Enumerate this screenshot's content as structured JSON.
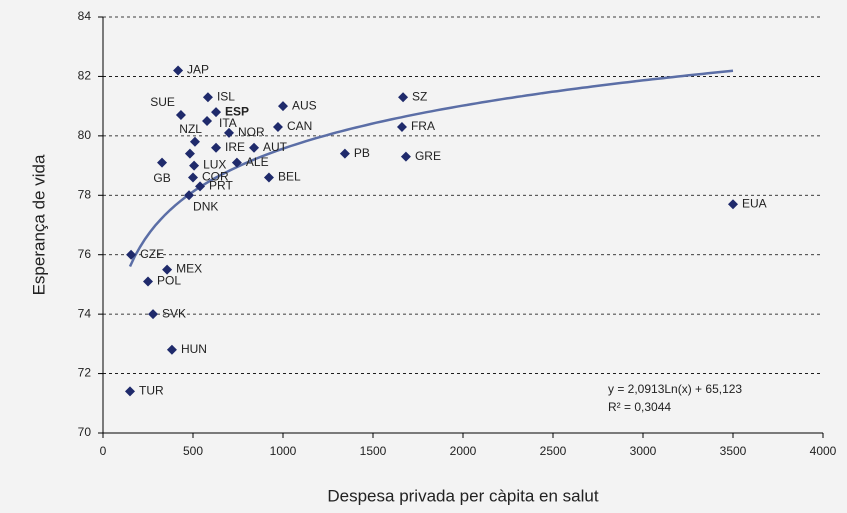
{
  "chart_data": {
    "type": "scatter",
    "xlabel": "Despesa privada per càpita en salut",
    "ylabel": "Esperança de vida",
    "labels": [
      "JAP",
      "ISL",
      "SUE",
      "ESP",
      "ITA",
      "NZL",
      "NOR",
      "AUS",
      "CAN",
      "IRE",
      "AUT",
      "GB",
      "LUX",
      null,
      "ALE",
      "COR",
      "PRT",
      "DNK",
      "BEL",
      "PB",
      "SZ",
      "FRA",
      "GRE",
      "EUA",
      "CZE",
      "MEX",
      "POL",
      "SVK",
      "HUN",
      "TUR"
    ],
    "x": [
      417,
      583,
      433,
      628,
      578,
      511,
      700,
      1000,
      972,
      628,
      839,
      328,
      506,
      483,
      744,
      500,
      539,
      478,
      922,
      1344,
      1667,
      1661,
      1683,
      3500,
      156,
      356,
      250,
      278,
      383,
      150
    ],
    "y": [
      82.2,
      81.3,
      80.7,
      80.8,
      80.5,
      79.8,
      80.1,
      81.0,
      80.3,
      79.6,
      79.6,
      79.1,
      79.0,
      79.4,
      79.1,
      78.6,
      78.3,
      78.0,
      78.6,
      79.4,
      81.3,
      80.3,
      79.3,
      77.7,
      76.0,
      75.5,
      75.1,
      74.0,
      72.8,
      71.4
    ],
    "color": "#1f2a6b",
    "highlighted": "ESP",
    "trendline": {
      "a": 2.0913,
      "b": 65.123,
      "xrange": [
        150,
        3500
      ],
      "color": "#5b6ea6"
    },
    "annotations": [
      "y = 2,0913Ln(x) + 65,123",
      "R² = 0,3044"
    ],
    "xlim": [
      0,
      4000
    ],
    "xticks": [
      0,
      500,
      1000,
      1500,
      2000,
      2500,
      3000,
      3500,
      4000
    ],
    "ylim": [
      70,
      84
    ],
    "yticks": [
      70,
      72,
      74,
      76,
      78,
      80,
      82,
      84
    ],
    "grid": true
  }
}
